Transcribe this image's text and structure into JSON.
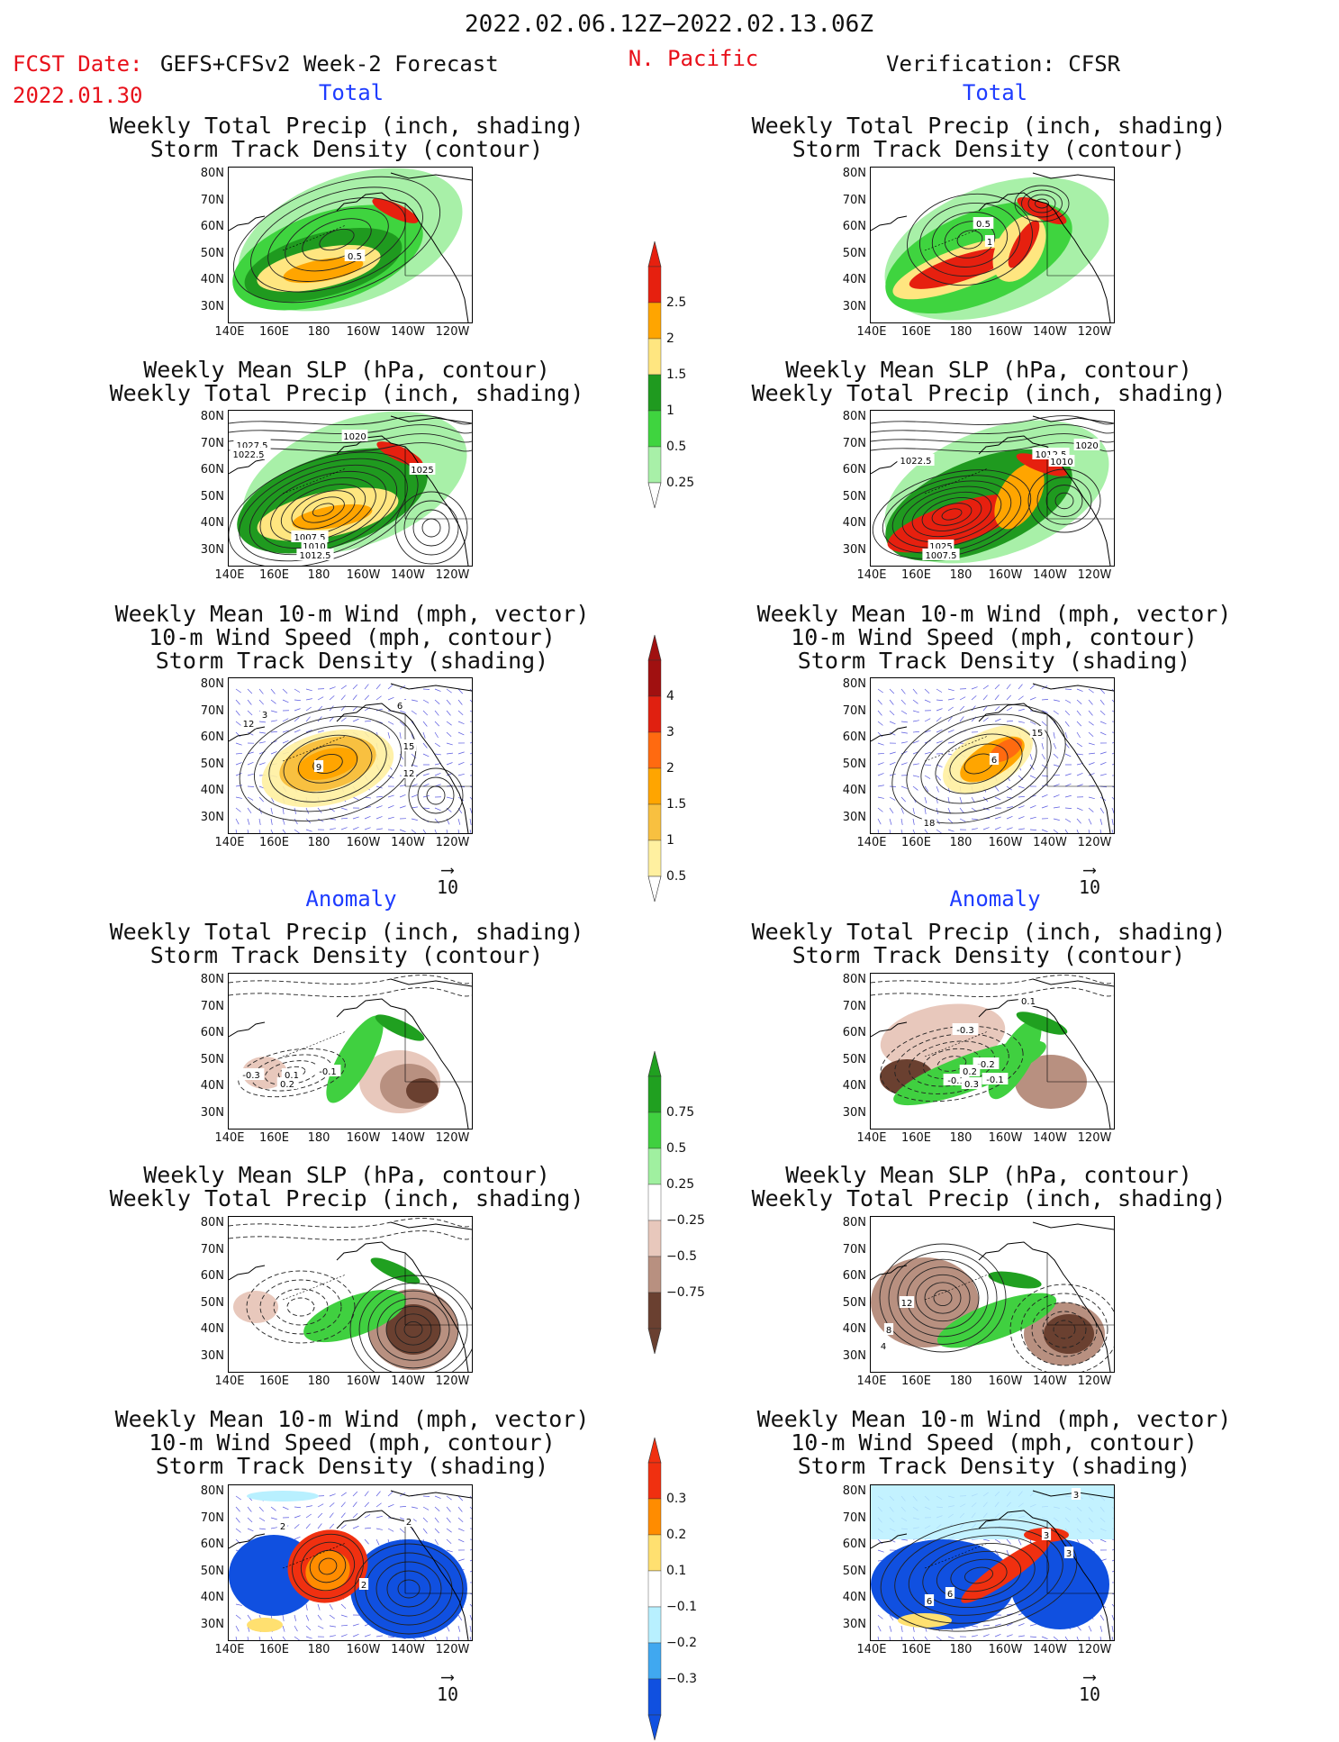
{
  "header": {
    "date_range": "2022.02.06.12Z−2022.02.13.06Z",
    "fcst_label": "FCST Date:",
    "model": "GEFS+CFSv2 Week-2 Forecast",
    "fcst_date": "2022.01.30",
    "region": "N. Pacific",
    "verification": "Verification: CFSR"
  },
  "sections": {
    "total": "Total",
    "anomaly": "Anomaly"
  },
  "panel_titles": {
    "precip_storm": [
      "Weekly Total Precip (inch, shading)",
      "Storm Track Density (contour)"
    ],
    "slp_precip": [
      "Weekly Mean SLP (hPa, contour)",
      "Weekly Total Precip (inch, shading)"
    ],
    "wind_storm": [
      "Weekly Mean 10-m Wind (mph, vector)",
      "10-m Wind Speed (mph, contour)",
      "Storm Track Density (shading)"
    ]
  },
  "axes": {
    "lat": [
      "80N",
      "70N",
      "60N",
      "50N",
      "40N",
      "30N"
    ],
    "lon": [
      "140E",
      "160E",
      "180",
      "160W",
      "140W",
      "120W"
    ]
  },
  "vector_ref": "10",
  "colorbars": {
    "total_precip": {
      "labels": [
        "2.5",
        "2",
        "1.5",
        "1",
        "0.5",
        "0.25"
      ],
      "colors": [
        "#e6200f",
        "#ffa500",
        "#ffe680",
        "#1f9a1f",
        "#3fd43f",
        "#a8f0a8"
      ]
    },
    "total_storm": {
      "labels": [
        "4",
        "3",
        "2",
        "1.5",
        "1",
        "0.5"
      ],
      "colors": [
        "#a01010",
        "#e02010",
        "#ff6a10",
        "#ffa500",
        "#f8c040",
        "#fff0a0"
      ]
    },
    "anom_precip": {
      "labels": [
        "0.75",
        "0.5",
        "0.25",
        "−0.25",
        "−0.5",
        "−0.75"
      ],
      "colors": [
        "#20a020",
        "#40d040",
        "#a0f0a0",
        "#ffffff",
        "#e8c8bc",
        "#b89080",
        "#6a4030"
      ]
    },
    "anom_storm": {
      "labels": [
        "0.3",
        "0.2",
        "0.1",
        "−0.1",
        "−0.2",
        "−0.3"
      ],
      "colors": [
        "#f03010",
        "#ff8c00",
        "#ffe070",
        "#ffffff",
        "#b8f0ff",
        "#40a8f0",
        "#1050e0"
      ]
    }
  },
  "map_annotations": {
    "l1": [
      "0.5"
    ],
    "r1": [
      "0.5",
      "1"
    ],
    "l2": [
      "1027.5",
      "1020",
      "1022.5",
      "1007.5",
      "1010",
      "1012.5",
      "1025"
    ],
    "r2": [
      "1022.5",
      "1012.5",
      "1020",
      "1010",
      "1025",
      "1007.5"
    ],
    "l3": [
      "12",
      "9",
      "6",
      "15",
      "12",
      "3"
    ],
    "r3": [
      "15",
      "6",
      "18"
    ],
    "l4": [
      "-0.3",
      "-0.1",
      "0.2",
      "0.1"
    ],
    "r4": [
      "-0.3",
      "-0.2",
      "-0.1",
      "0.2",
      "0.3",
      "-0.1",
      "0.1"
    ],
    "r5": [
      "12",
      "8",
      "4"
    ],
    "l6": [
      "2",
      "2",
      "2"
    ],
    "r6": [
      "3",
      "3",
      "6",
      "6",
      "3"
    ]
  }
}
